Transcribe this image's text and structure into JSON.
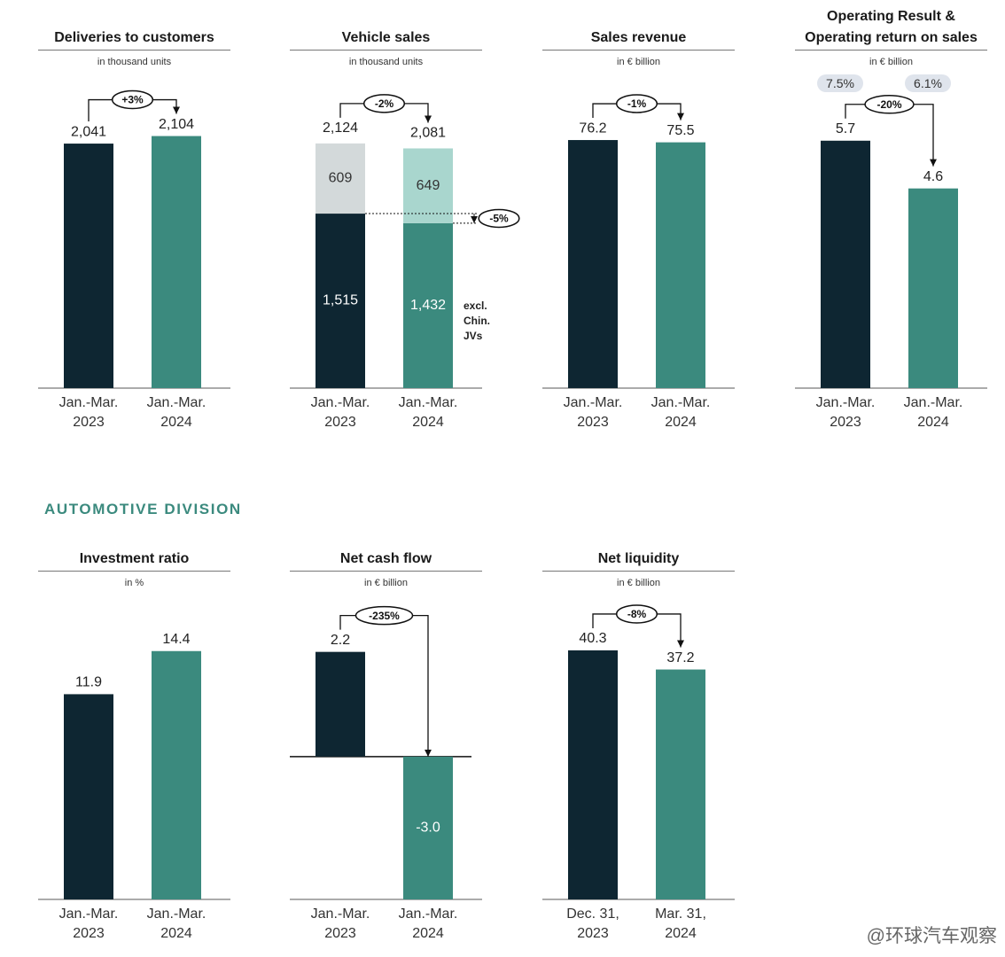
{
  "section_heading": "AUTOMOTIVE DIVISION",
  "watermark": "@环球汽车观察",
  "chart_data": [
    {
      "type": "bar",
      "title": "Deliveries to customers",
      "subtitle": "in thousand units",
      "categories": [
        "Jan.-Mar.\n2023",
        "Jan.-Mar.\n2024"
      ],
      "values": [
        2041,
        2104
      ],
      "value_labels": [
        "2,041",
        "2,104"
      ],
      "colors": [
        "#0e2632",
        "#3b8a7e"
      ],
      "ylim": [
        0,
        2500
      ],
      "change": "+3%"
    },
    {
      "type": "stacked_bar",
      "title": "Vehicle sales",
      "subtitle": "in thousand units",
      "categories": [
        "Jan.-Mar.\n2023",
        "Jan.-Mar.\n2024"
      ],
      "series": [
        {
          "name": "excl. Chin. JVs",
          "values": [
            1515,
            1432
          ],
          "value_labels": [
            "1,515",
            "1,432"
          ],
          "colors": [
            "#0e2632",
            "#3b8a7e"
          ]
        },
        {
          "values": [
            609,
            649
          ],
          "colors": [
            "#d3d9da",
            "#a9d6ce"
          ]
        }
      ],
      "totals": [
        2124,
        2081
      ],
      "total_labels": [
        "2,124",
        "2,081"
      ],
      "ylim": [
        0,
        2600
      ],
      "change": "-2%",
      "segment_change": "-5%"
    },
    {
      "type": "bar",
      "title": "Sales revenue",
      "subtitle": "in € billion",
      "categories": [
        "Jan.-Mar.\n2023",
        "Jan.-Mar.\n2024"
      ],
      "values": [
        76.2,
        75.5
      ],
      "colors": [
        "#0e2632",
        "#3b8a7e"
      ],
      "ylim": [
        0,
        92
      ],
      "change": "-1%"
    },
    {
      "type": "bar",
      "title": "Operating Result &\nOperating return on sales",
      "subtitle": "in € billion",
      "categories": [
        "Jan.-Mar.\n2023",
        "Jan.-Mar.\n2024"
      ],
      "values": [
        5.7,
        4.6
      ],
      "colors": [
        "#0e2632",
        "#3b8a7e"
      ],
      "ylim": [
        0,
        6.9
      ],
      "change": "-20%",
      "returns": [
        7.5,
        6.1
      ],
      "return_labels": [
        "7.5%",
        "6.1%"
      ]
    },
    {
      "type": "bar",
      "title": "Investment ratio",
      "subtitle": "in %",
      "categories": [
        "Jan.-Mar.\n2023",
        "Jan.-Mar.\n2024"
      ],
      "values": [
        11.9,
        14.4
      ],
      "colors": [
        "#0e2632",
        "#3b8a7e"
      ],
      "ylim": [
        0,
        16.7
      ]
    },
    {
      "type": "bar",
      "title": "Net cash flow",
      "subtitle": "in € billion",
      "categories": [
        "Jan.-Mar.\n2023",
        "Jan.-Mar.\n2024"
      ],
      "values": [
        2.2,
        -3.0
      ],
      "value_labels": [
        "2.2",
        "-3.0"
      ],
      "colors": [
        "#0e2632",
        "#3b8a7e"
      ],
      "ylim": [
        -3.0,
        3.05
      ],
      "change": "-235%"
    },
    {
      "type": "bar",
      "title": "Net liquidity",
      "subtitle": "in € billion",
      "categories": [
        "Dec. 31,\n2023",
        "Mar. 31,\n2024"
      ],
      "values": [
        40.3,
        37.2
      ],
      "colors": [
        "#0e2632",
        "#3b8a7e"
      ],
      "ylim": [
        0,
        46.6
      ],
      "change": "-8%"
    }
  ]
}
